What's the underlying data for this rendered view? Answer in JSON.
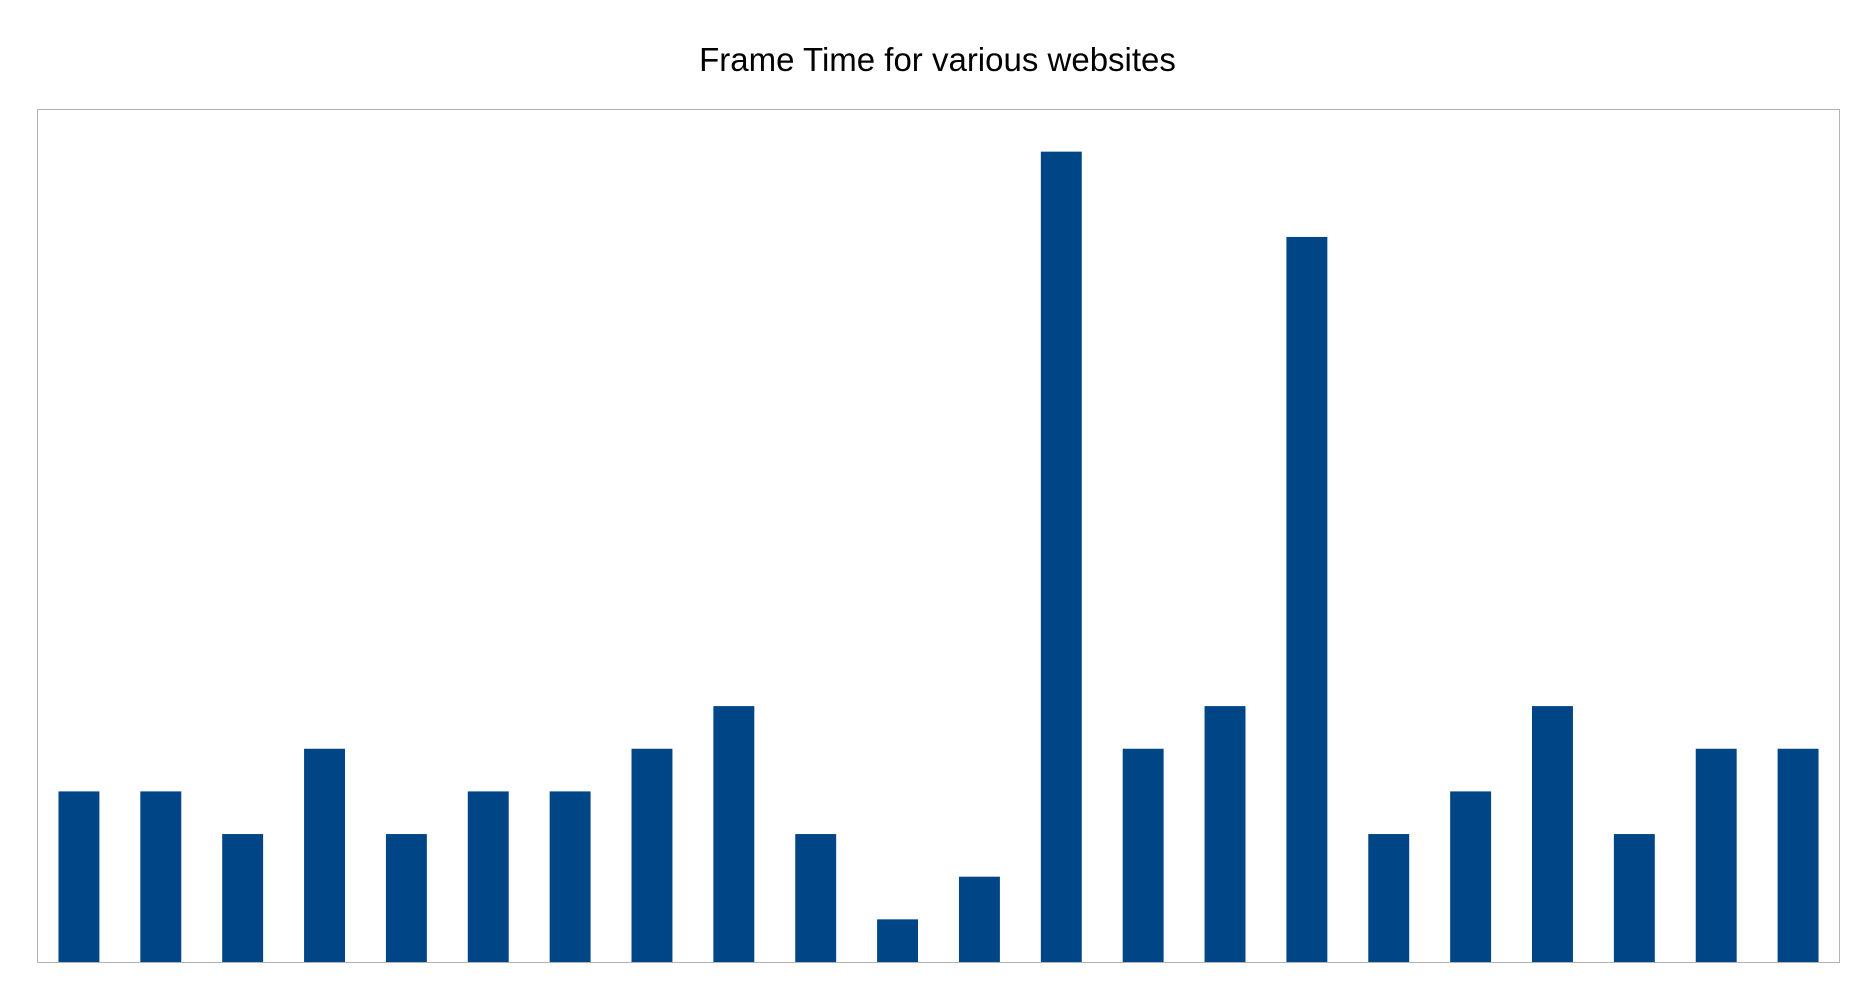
{
  "colors": {
    "bar": "#004586",
    "frame": "#b3b3b3",
    "background": "#ffffff"
  },
  "chart_data": {
    "type": "bar",
    "title": "Frame Time for various websites",
    "xlabel": "",
    "ylabel": "",
    "grid": false,
    "legend": "none",
    "ylim": [
      0,
      20
    ],
    "values": [
      4,
      4,
      3,
      5,
      3,
      4,
      4,
      5,
      6,
      3,
      1,
      2,
      19,
      5,
      6,
      17,
      3,
      4,
      6,
      3,
      5,
      5
    ]
  }
}
